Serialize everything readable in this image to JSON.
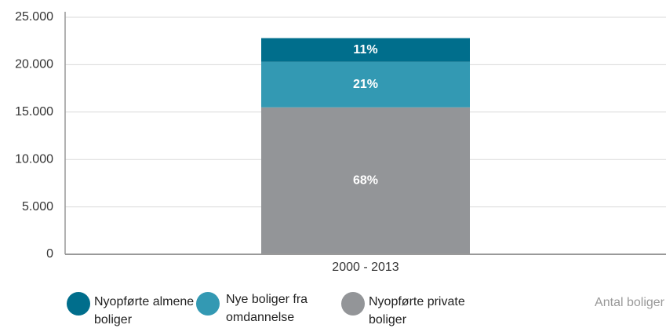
{
  "chart_data": {
    "type": "stacked_bar",
    "categories": [
      "2000 - 2013"
    ],
    "series": [
      {
        "name": "Nyopførte almene boliger",
        "color": "#006e8c",
        "values": [
          2500
        ],
        "value_labels": [
          "11%"
        ]
      },
      {
        "name": "Nye boliger fra omdannelse",
        "color": "#3399b3",
        "values": [
          4800
        ],
        "value_labels": [
          "21%"
        ]
      },
      {
        "name": "Nyopførte private boliger",
        "color": "#939598",
        "values": [
          15500
        ],
        "value_labels": [
          "68%"
        ]
      }
    ],
    "y_axis_label": "Antal boliger",
    "ylim": [
      0,
      25000
    ],
    "yticks": [
      0,
      {
        "value": 5000,
        "label": "5.000"
      },
      {
        "value": 10000,
        "label": "10.000"
      },
      {
        "value": 15000,
        "label": "15.000"
      },
      {
        "value": 20000,
        "label": "20.000"
      },
      {
        "value": 25000,
        "label": "25.000"
      }
    ],
    "grid": true
  }
}
